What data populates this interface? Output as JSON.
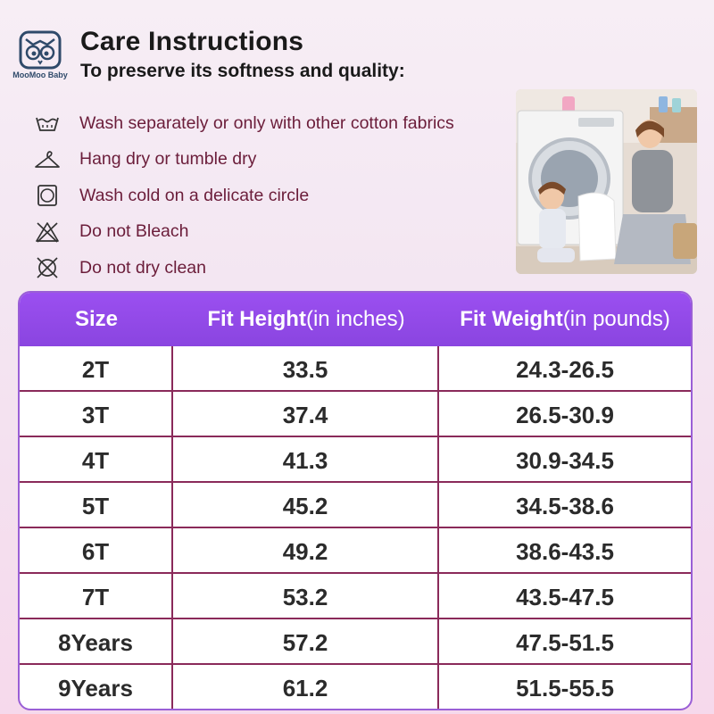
{
  "brand": {
    "logo_text": "MooMoo Baby"
  },
  "header": {
    "title": "Care Instructions",
    "subtitle": "To preserve its softness and quality:"
  },
  "care_items": [
    {
      "icon": "wash-basin-icon",
      "text": "Wash separately or only with other cotton fabrics"
    },
    {
      "icon": "hanger-icon",
      "text": "Hang dry or tumble dry"
    },
    {
      "icon": "tumble-dry-icon",
      "text": "Wash cold on a delicate circle"
    },
    {
      "icon": "no-bleach-icon",
      "text": "Do not Bleach"
    },
    {
      "icon": "no-dry-clean-icon",
      "text": "Do not dry clean"
    }
  ],
  "table": {
    "headers": {
      "size": "Size",
      "height_bold": "Fit Height",
      "height_unit": "(in inches)",
      "weight_bold": "Fit Weight",
      "weight_unit": "(in pounds)"
    },
    "rows": [
      {
        "size": "2T",
        "height": "33.5",
        "weight": "24.3-26.5"
      },
      {
        "size": "3T",
        "height": "37.4",
        "weight": "26.5-30.9"
      },
      {
        "size": "4T",
        "height": "41.3",
        "weight": "30.9-34.5"
      },
      {
        "size": "5T",
        "height": "45.2",
        "weight": "34.5-38.6"
      },
      {
        "size": "6T",
        "height": "49.2",
        "weight": "38.6-43.5"
      },
      {
        "size": "7T",
        "height": "53.2",
        "weight": "43.5-47.5"
      },
      {
        "size": "8Years",
        "height": "57.2",
        "weight": "47.5-51.5"
      },
      {
        "size": "9Years",
        "height": "61.2",
        "weight": "51.5-55.5"
      }
    ]
  },
  "colors": {
    "header_purple": "#9b4ff0",
    "care_text": "#6b1d3a",
    "row_divider": "#8a2a5a"
  }
}
